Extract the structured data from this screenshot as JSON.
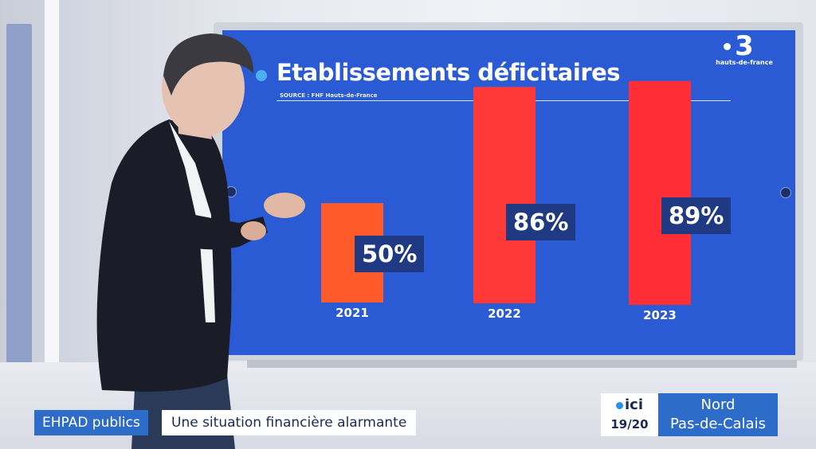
{
  "channel": {
    "logo_number": "3",
    "logo_region": "hauts-de-france"
  },
  "chart_data": {
    "type": "bar",
    "title": "Etablissements déficitaires",
    "source": "SOURCE : FHF Hauts-de-France",
    "categories": [
      "2021",
      "2022",
      "2023"
    ],
    "values": [
      50,
      86,
      89
    ],
    "value_labels": [
      "50%",
      "86%",
      "89%"
    ],
    "ylim": [
      0,
      100
    ],
    "bar_colors": [
      "#ff5a2a",
      "#ff3838",
      "#ff2e36"
    ],
    "background": "#2a5bd4"
  },
  "lower_third": {
    "tag": "EHPAD publics",
    "headline": "Une situation financière alarmante"
  },
  "program": {
    "brand": "ici",
    "time": "19/20",
    "region_line1": "Nord",
    "region_line2": "Pas-de-Calais"
  }
}
